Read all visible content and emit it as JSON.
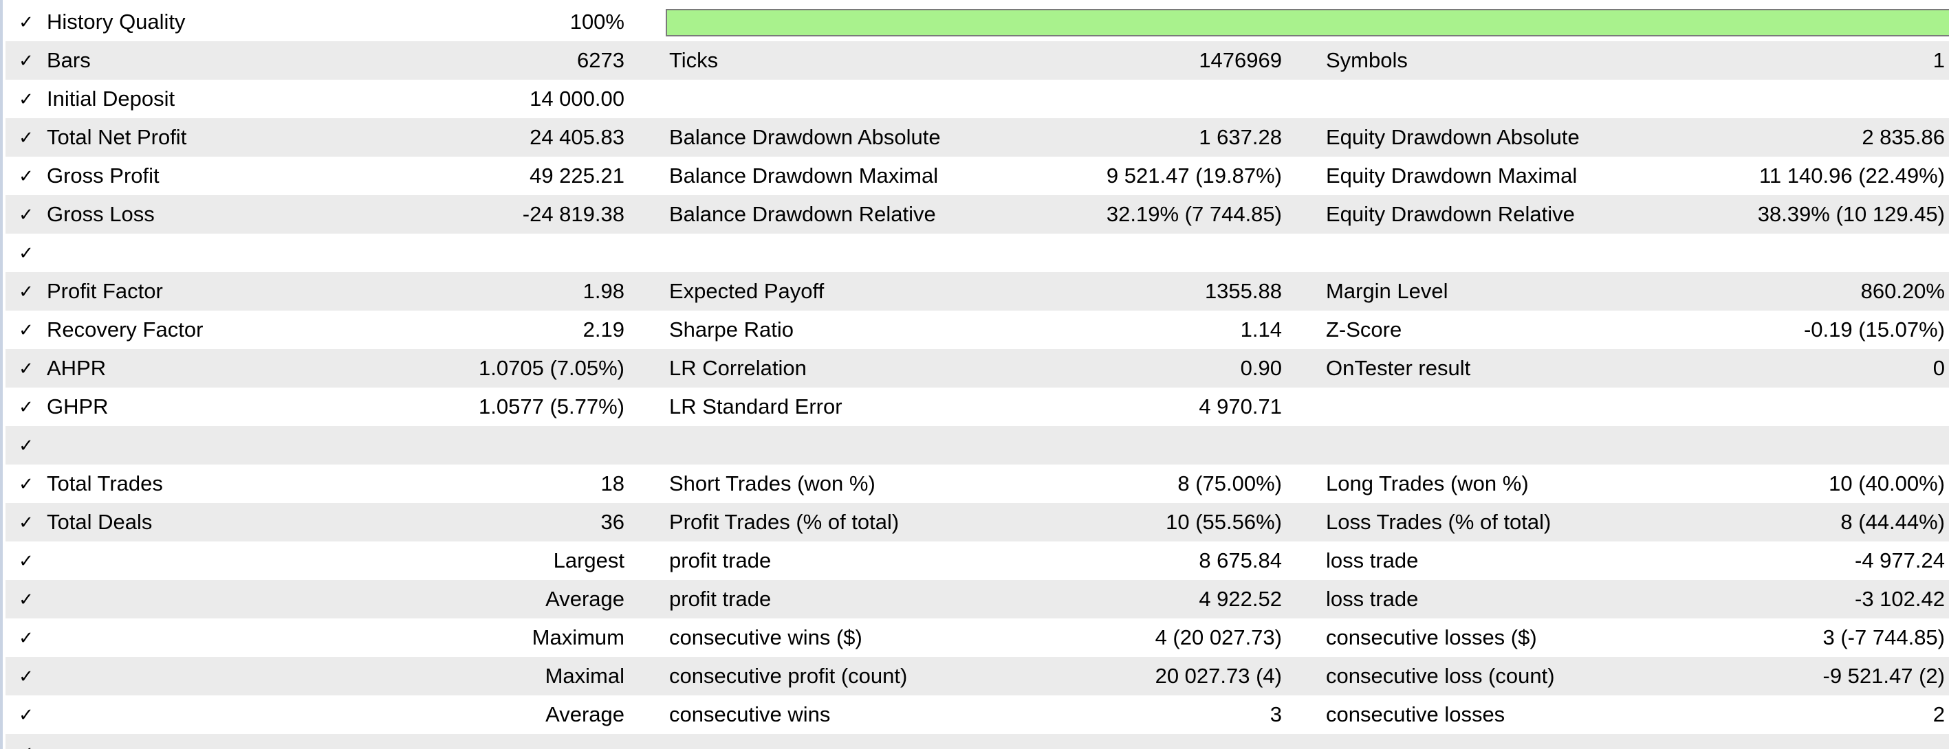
{
  "check_glyph": "✓",
  "colors": {
    "row_alt": "#ebebeb",
    "quality_fill": "#a9f28d",
    "quality_border": "#7a7a7a"
  },
  "history_quality": {
    "label": "History Quality",
    "value": "100%",
    "fill_fraction": 1.0
  },
  "rows": [
    {
      "c1_label": "Bars",
      "c1_value": "6273",
      "c2_label": "Ticks",
      "c2_value": "1476969",
      "c3_label": "Symbols",
      "c3_value": "1"
    },
    {
      "c1_label": "Initial Deposit",
      "c1_value": "14 000.00",
      "c2_label": "",
      "c2_value": "",
      "c3_label": "",
      "c3_value": ""
    },
    {
      "c1_label": "Total Net Profit",
      "c1_value": "24 405.83",
      "c2_label": "Balance Drawdown Absolute",
      "c2_value": "1 637.28",
      "c3_label": "Equity Drawdown Absolute",
      "c3_value": "2 835.86"
    },
    {
      "c1_label": "Gross Profit",
      "c1_value": "49 225.21",
      "c2_label": "Balance Drawdown Maximal",
      "c2_value": "9 521.47 (19.87%)",
      "c3_label": "Equity Drawdown Maximal",
      "c3_value": "11 140.96 (22.49%)"
    },
    {
      "c1_label": "Gross Loss",
      "c1_value": "-24 819.38",
      "c2_label": "Balance Drawdown Relative",
      "c2_value": "32.19% (7 744.85)",
      "c3_label": "Equity Drawdown Relative",
      "c3_value": "38.39% (10 129.45)"
    },
    {
      "c1_label": "",
      "c1_value": "",
      "c2_label": "",
      "c2_value": "",
      "c3_label": "",
      "c3_value": ""
    },
    {
      "c1_label": "Profit Factor",
      "c1_value": "1.98",
      "c2_label": "Expected Payoff",
      "c2_value": "1355.88",
      "c3_label": "Margin Level",
      "c3_value": "860.20%"
    },
    {
      "c1_label": "Recovery Factor",
      "c1_value": "2.19",
      "c2_label": "Sharpe Ratio",
      "c2_value": "1.14",
      "c3_label": "Z-Score",
      "c3_value": "-0.19 (15.07%)"
    },
    {
      "c1_label": "AHPR",
      "c1_value": "1.0705 (7.05%)",
      "c2_label": "LR Correlation",
      "c2_value": "0.90",
      "c3_label": "OnTester result",
      "c3_value": "0"
    },
    {
      "c1_label": "GHPR",
      "c1_value": "1.0577 (5.77%)",
      "c2_label": "LR Standard Error",
      "c2_value": "4 970.71",
      "c3_label": "",
      "c3_value": ""
    },
    {
      "c1_label": "",
      "c1_value": "",
      "c2_label": "",
      "c2_value": "",
      "c3_label": "",
      "c3_value": ""
    },
    {
      "c1_label": "Total Trades",
      "c1_value": "18",
      "c2_label": "Short Trades (won %)",
      "c2_value": "8 (75.00%)",
      "c3_label": "Long Trades (won %)",
      "c3_value": "10 (40.00%)"
    },
    {
      "c1_label": "Total Deals",
      "c1_value": "36",
      "c2_label": "Profit Trades (% of total)",
      "c2_value": "10 (55.56%)",
      "c3_label": "Loss Trades (% of total)",
      "c3_value": "8 (44.44%)"
    },
    {
      "c1_label": "Largest",
      "c1_label_align": "right",
      "c1_value": "",
      "c2_label": "profit trade",
      "c2_value": "8 675.84",
      "c3_label": "loss trade",
      "c3_value": "-4 977.24"
    },
    {
      "c1_label": "Average",
      "c1_label_align": "right",
      "c1_value": "",
      "c2_label": "profit trade",
      "c2_value": "4 922.52",
      "c3_label": "loss trade",
      "c3_value": "-3 102.42"
    },
    {
      "c1_label": "Maximum",
      "c1_label_align": "right",
      "c1_value": "",
      "c2_label": "consecutive wins ($)",
      "c2_value": "4 (20 027.73)",
      "c3_label": "consecutive losses ($)",
      "c3_value": "3 (-7 744.85)"
    },
    {
      "c1_label": "Maximal",
      "c1_label_align": "right",
      "c1_value": "",
      "c2_label": "consecutive profit (count)",
      "c2_value": "20 027.73 (4)",
      "c3_label": "consecutive loss (count)",
      "c3_value": "-9 521.47 (2)"
    },
    {
      "c1_label": "Average",
      "c1_label_align": "right",
      "c1_value": "",
      "c2_label": "consecutive wins",
      "c2_value": "3",
      "c3_label": "consecutive losses",
      "c3_value": "2"
    }
  ]
}
